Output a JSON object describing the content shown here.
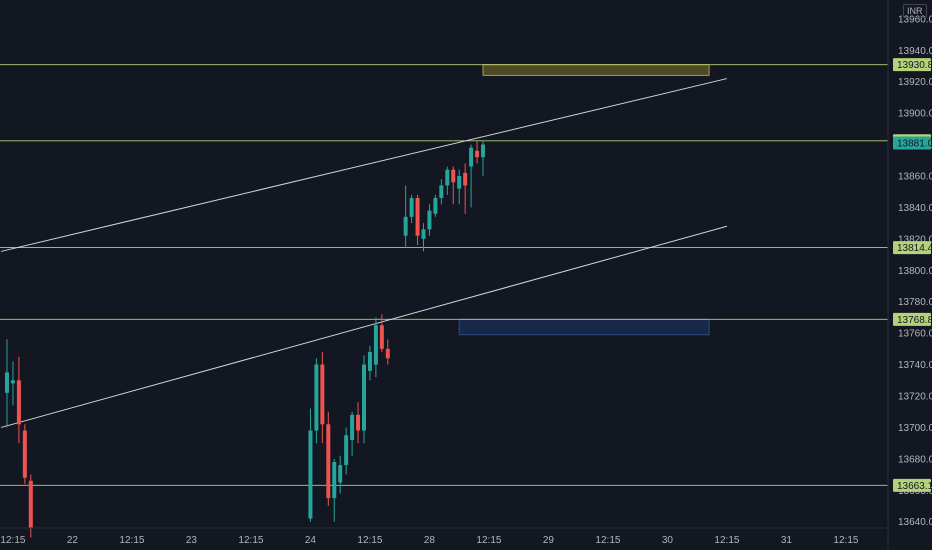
{
  "currency": "INR",
  "chart_data": {
    "type": "candlestick",
    "ylim": [
      13636,
      13972
    ],
    "y_ticks": [
      13640,
      13660,
      13680,
      13700,
      13720,
      13740,
      13760,
      13780,
      13800,
      13820,
      13840,
      13860,
      13880,
      13900,
      13920,
      13940,
      13960
    ],
    "y_tick_labels": [
      "13640.00",
      "13660.00",
      "13680.00",
      "13700.00",
      "13720.00",
      "13740.00",
      "13760.00",
      "13780.00",
      "13800.00",
      "13820.00",
      "13840.00",
      "13860.00",
      "13880.00",
      "13900.00",
      "13920.00",
      "13940.00",
      "13960.00"
    ],
    "x_labels": [
      {
        "slot": 1,
        "label": "12:15"
      },
      {
        "slot": 11,
        "label": "22"
      },
      {
        "slot": 21,
        "label": "12:15"
      },
      {
        "slot": 31,
        "label": "23"
      },
      {
        "slot": 41,
        "label": "12:15"
      },
      {
        "slot": 51,
        "label": "24"
      },
      {
        "slot": 61,
        "label": "12:15"
      },
      {
        "slot": 71,
        "label": "28"
      },
      {
        "slot": 81,
        "label": "12:15"
      },
      {
        "slot": 91,
        "label": "29"
      },
      {
        "slot": 101,
        "label": "12:15"
      },
      {
        "slot": 111,
        "label": "30"
      },
      {
        "slot": 121,
        "label": "12:15"
      },
      {
        "slot": 131,
        "label": "31"
      },
      {
        "slot": 141,
        "label": "12:15"
      }
    ],
    "candles": [
      {
        "slot": 0,
        "o": 13722,
        "h": 13756,
        "l": 13700,
        "c": 13735
      },
      {
        "slot": 1,
        "o": 13728,
        "h": 13742,
        "l": 13714,
        "c": 13730
      },
      {
        "slot": 2,
        "o": 13730,
        "h": 13745,
        "l": 13690,
        "c": 13702
      },
      {
        "slot": 3,
        "o": 13698,
        "h": 13702,
        "l": 13664,
        "c": 13668
      },
      {
        "slot": 4,
        "o": 13666,
        "h": 13670,
        "l": 13630,
        "c": 13636
      },
      {
        "slot": 51,
        "o": 13642,
        "h": 13712,
        "l": 13640,
        "c": 13698
      },
      {
        "slot": 52,
        "o": 13698,
        "h": 13744,
        "l": 13690,
        "c": 13740
      },
      {
        "slot": 53,
        "o": 13740,
        "h": 13748,
        "l": 13690,
        "c": 13702
      },
      {
        "slot": 54,
        "o": 13702,
        "h": 13710,
        "l": 13650,
        "c": 13655
      },
      {
        "slot": 55,
        "o": 13655,
        "h": 13680,
        "l": 13640,
        "c": 13678
      },
      {
        "slot": 56,
        "o": 13665,
        "h": 13682,
        "l": 13658,
        "c": 13676
      },
      {
        "slot": 57,
        "o": 13676,
        "h": 13700,
        "l": 13670,
        "c": 13695
      },
      {
        "slot": 58,
        "o": 13692,
        "h": 13710,
        "l": 13682,
        "c": 13708
      },
      {
        "slot": 59,
        "o": 13708,
        "h": 13716,
        "l": 13690,
        "c": 13698
      },
      {
        "slot": 60,
        "o": 13698,
        "h": 13746,
        "l": 13690,
        "c": 13740
      },
      {
        "slot": 61,
        "o": 13736,
        "h": 13752,
        "l": 13730,
        "c": 13748
      },
      {
        "slot": 62,
        "o": 13740,
        "h": 13770,
        "l": 13732,
        "c": 13765
      },
      {
        "slot": 63,
        "o": 13765,
        "h": 13772,
        "l": 13748,
        "c": 13750
      },
      {
        "slot": 64,
        "o": 13750,
        "h": 13756,
        "l": 13740,
        "c": 13744
      },
      {
        "slot": 67,
        "o": 13822,
        "h": 13854,
        "l": 13814,
        "c": 13834
      },
      {
        "slot": 68,
        "o": 13834,
        "h": 13848,
        "l": 13830,
        "c": 13846
      },
      {
        "slot": 69,
        "o": 13846,
        "h": 13848,
        "l": 13816,
        "c": 13822
      },
      {
        "slot": 70,
        "o": 13820,
        "h": 13830,
        "l": 13812,
        "c": 13826
      },
      {
        "slot": 71,
        "o": 13826,
        "h": 13842,
        "l": 13822,
        "c": 13838
      },
      {
        "slot": 72,
        "o": 13836,
        "h": 13848,
        "l": 13834,
        "c": 13846
      },
      {
        "slot": 73,
        "o": 13846,
        "h": 13858,
        "l": 13842,
        "c": 13854
      },
      {
        "slot": 74,
        "o": 13854,
        "h": 13866,
        "l": 13848,
        "c": 13864
      },
      {
        "slot": 75,
        "o": 13864,
        "h": 13866,
        "l": 13842,
        "c": 13856
      },
      {
        "slot": 76,
        "o": 13852,
        "h": 13864,
        "l": 13842,
        "c": 13860
      },
      {
        "slot": 77,
        "o": 13862,
        "h": 13868,
        "l": 13836,
        "c": 13854
      },
      {
        "slot": 78,
        "o": 13866,
        "h": 13880,
        "l": 13840,
        "c": 13878
      },
      {
        "slot": 79,
        "o": 13876,
        "h": 13882,
        "l": 13868,
        "c": 13872
      },
      {
        "slot": 80,
        "o": 13872,
        "h": 13882,
        "l": 13860,
        "c": 13880
      }
    ],
    "horizontal_lines": [
      {
        "value": 13930.85,
        "label": "13930.85"
      },
      {
        "value": 13882.4,
        "label": "13882.40"
      },
      {
        "value": 13814.45,
        "label": "13814.45"
      },
      {
        "value": 13768.8,
        "label": "13768.80"
      },
      {
        "value": 13663.15,
        "label": "13663.15"
      }
    ],
    "last_price": {
      "value": 13881.0,
      "label": "13881.00"
    },
    "trend_lines": [
      {
        "from": {
          "slot": -1,
          "value": 13812
        },
        "to": {
          "slot": 121,
          "value": 13922
        }
      },
      {
        "from": {
          "slot": -1,
          "value": 13700
        },
        "to": {
          "slot": 121,
          "value": 13828
        }
      }
    ],
    "zones": [
      {
        "slot_from": 80,
        "slot_to": 118,
        "value_top": 13930.85,
        "value_bottom": 13924,
        "kind": "supply"
      },
      {
        "slot_from": 76,
        "slot_to": 118,
        "value_top": 13768.8,
        "value_bottom": 13759,
        "kind": "demand"
      }
    ],
    "colors": {
      "up": "#26a69a",
      "down": "#ef5350",
      "level_line": "#b5d17a",
      "level_badge": "#b5d17a",
      "last_price_badge": "#26a69a",
      "trend_line": "#d1d4dc",
      "supply_fill": "#5a5424",
      "supply_stroke": "#a89a3a",
      "demand_fill": "#1a2c50",
      "demand_stroke": "#2e4a86",
      "axis_text": "#b2b5be",
      "axis_border": "#2a2e39"
    }
  }
}
